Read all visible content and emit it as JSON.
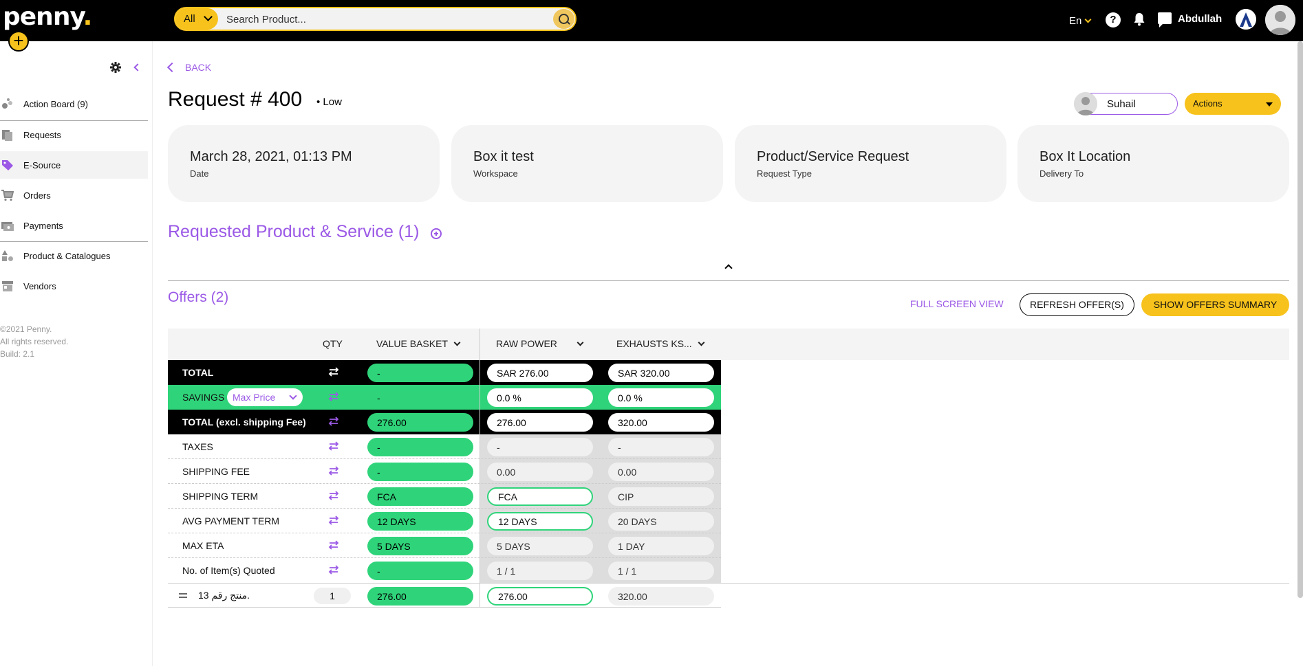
{
  "header": {
    "logo": "penny",
    "search_category": "All",
    "search_placeholder": "Search Product...",
    "language": "En",
    "help_label": "?",
    "username": "Abdullah"
  },
  "sidebar": {
    "items": [
      {
        "label": "Action Board (9)",
        "icon": "action-board-icon"
      },
      {
        "label": "Requests",
        "icon": "requests-icon"
      },
      {
        "label": "E-Source",
        "icon": "tag-icon",
        "active": true
      },
      {
        "label": "Orders",
        "icon": "cart-icon"
      },
      {
        "label": "Payments",
        "icon": "payments-icon"
      },
      {
        "label": "Product & Catalogues",
        "icon": "shapes-icon"
      },
      {
        "label": "Vendors",
        "icon": "store-icon"
      }
    ],
    "footer": [
      "©2021 Penny.",
      "All rights reserved.",
      "Build: 2.1"
    ]
  },
  "page": {
    "back_label": "BACK",
    "title": "Request # 400",
    "priority": "• Low",
    "assignee": "Suhail",
    "actions_label": "Actions",
    "cards": [
      {
        "value": "March 28, 2021, 01:13 PM",
        "label": "Date"
      },
      {
        "value": "Box it test",
        "label": "Workspace"
      },
      {
        "value": "Product/Service Request",
        "label": "Request Type"
      },
      {
        "value": "Box It Location",
        "label": "Delivery To"
      }
    ],
    "requested_title": "Requested Product & Service (1)",
    "offers_title": "Offers (2)",
    "full_screen_label": "FULL SCREEN VIEW",
    "refresh_label": "REFRESH OFFER(S)",
    "summary_label": "SHOW OFFERS SUMMARY"
  },
  "table": {
    "headers": {
      "qty": "QTY",
      "value_basket": "VALUE BASKET",
      "vendor1": "RAW POWER",
      "vendor2": "EXHAUSTS KS..."
    },
    "savings_mode": "Max Price",
    "rows": [
      {
        "label": "TOTAL",
        "vb": "-",
        "v1": "SAR 276.00",
        "v2": "SAR 320.00"
      },
      {
        "label": "SAVINGS",
        "vb": "-",
        "v1": "0.0 %",
        "v2": "0.0 %"
      },
      {
        "label": "TOTAL (excl. shipping Fee)",
        "vb": "276.00",
        "v1": "276.00",
        "v2": "320.00"
      },
      {
        "label": "TAXES",
        "vb": "-",
        "v1": "-",
        "v2": "-"
      },
      {
        "label": "SHIPPING FEE",
        "vb": "-",
        "v1": "0.00",
        "v2": "0.00"
      },
      {
        "label": "SHIPPING TERM",
        "vb": "FCA",
        "v1": "FCA",
        "v2": "CIP"
      },
      {
        "label": "AVG PAYMENT TERM",
        "vb": "12 DAYS",
        "v1": "12 DAYS",
        "v2": "20 DAYS"
      },
      {
        "label": "MAX ETA",
        "vb": "5 DAYS",
        "v1": "5 DAYS",
        "v2": "1 DAY"
      },
      {
        "label": "No. of Item(s) Quoted",
        "vb": "-",
        "v1": "1 / 1",
        "v2": "1 / 1"
      }
    ],
    "product": {
      "name": "منتج رقم 13.",
      "qty": "1",
      "vb": "276.00",
      "v1": "276.00",
      "v2": "320.00"
    }
  },
  "colors": {
    "accent": "#9b59e6",
    "brand": "#f7c21b",
    "green": "#2fd47a"
  }
}
